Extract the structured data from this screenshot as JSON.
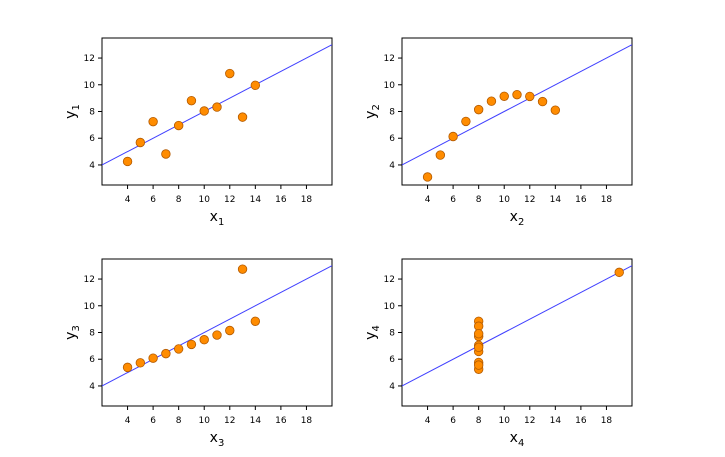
{
  "chart_data": [
    {
      "type": "scatter",
      "xlabel": "x",
      "xlabel_sub": "1",
      "ylabel": "y",
      "ylabel_sub": "1",
      "xlim": [
        2,
        20
      ],
      "ylim": [
        2.5,
        13.5
      ],
      "xticks": [
        4,
        6,
        8,
        10,
        12,
        14,
        16,
        18
      ],
      "yticks": [
        4,
        6,
        8,
        10,
        12
      ],
      "x": [
        10,
        8,
        13,
        9,
        11,
        14,
        6,
        4,
        12,
        7,
        5
      ],
      "y": [
        8.04,
        6.95,
        7.58,
        8.81,
        8.33,
        9.96,
        7.24,
        4.26,
        10.84,
        4.82,
        5.68
      ],
      "fit": {
        "intercept": 3,
        "slope": 0.5
      },
      "point_color": "#FF8C00",
      "point_edge": "#B35A00",
      "line_color": "#4040FF"
    },
    {
      "type": "scatter",
      "xlabel": "x",
      "xlabel_sub": "2",
      "ylabel": "y",
      "ylabel_sub": "2",
      "xlim": [
        2,
        20
      ],
      "ylim": [
        2.5,
        13.5
      ],
      "xticks": [
        4,
        6,
        8,
        10,
        12,
        14,
        16,
        18
      ],
      "yticks": [
        4,
        6,
        8,
        10,
        12
      ],
      "x": [
        10,
        8,
        13,
        9,
        11,
        14,
        6,
        4,
        12,
        7,
        5
      ],
      "y": [
        9.14,
        8.14,
        8.74,
        8.77,
        9.26,
        8.1,
        6.13,
        3.1,
        9.13,
        7.26,
        4.74
      ],
      "fit": {
        "intercept": 3,
        "slope": 0.5
      },
      "point_color": "#FF8C00",
      "point_edge": "#B35A00",
      "line_color": "#4040FF"
    },
    {
      "type": "scatter",
      "xlabel": "x",
      "xlabel_sub": "3",
      "ylabel": "y",
      "ylabel_sub": "3",
      "xlim": [
        2,
        20
      ],
      "ylim": [
        2.5,
        13.5
      ],
      "xticks": [
        4,
        6,
        8,
        10,
        12,
        14,
        16,
        18
      ],
      "yticks": [
        4,
        6,
        8,
        10,
        12
      ],
      "x": [
        10,
        8,
        13,
        9,
        11,
        14,
        6,
        4,
        12,
        7,
        5
      ],
      "y": [
        7.46,
        6.77,
        12.74,
        7.11,
        7.81,
        8.84,
        6.08,
        5.39,
        8.15,
        6.42,
        5.73
      ],
      "fit": {
        "intercept": 3,
        "slope": 0.5
      },
      "point_color": "#FF8C00",
      "point_edge": "#B35A00",
      "line_color": "#4040FF"
    },
    {
      "type": "scatter",
      "xlabel": "x",
      "xlabel_sub": "4",
      "ylabel": "y",
      "ylabel_sub": "4",
      "xlim": [
        2,
        20
      ],
      "ylim": [
        2.5,
        13.5
      ],
      "xticks": [
        4,
        6,
        8,
        10,
        12,
        14,
        16,
        18
      ],
      "yticks": [
        4,
        6,
        8,
        10,
        12
      ],
      "x": [
        8,
        8,
        8,
        8,
        8,
        8,
        8,
        19,
        8,
        8,
        8
      ],
      "y": [
        6.58,
        5.76,
        7.71,
        8.84,
        8.47,
        7.04,
        5.25,
        12.5,
        5.56,
        7.91,
        6.89
      ],
      "fit": {
        "intercept": 3,
        "slope": 0.5
      },
      "point_color": "#FF8C00",
      "point_edge": "#B35A00",
      "line_color": "#4040FF"
    }
  ]
}
